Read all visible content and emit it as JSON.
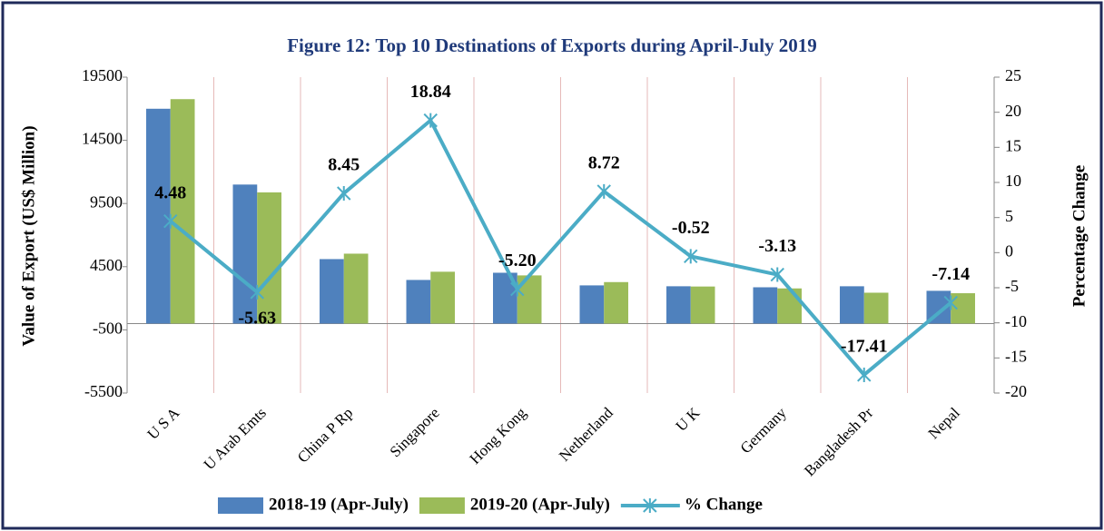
{
  "chart_data": {
    "type": "bar",
    "title": "Figure 12: Top 10 Destinations of Exports during April-July 2019",
    "y_label": "Value of Export (US$ Million)",
    "y2_label": "Percentage Change",
    "categories": [
      "U S A",
      "U Arab Emts",
      "China P Rp",
      "Singapore",
      "Hong Kong",
      "Netherland",
      "U K",
      "Germany",
      "Bangladesh Pr",
      "Nepal"
    ],
    "series": [
      {
        "name": "2018-19 (Apr-July)",
        "type": "bar",
        "color": "#4f81bd",
        "values": [
          17000,
          11000,
          5100,
          3450,
          4020,
          3020,
          2950,
          2870,
          2950,
          2590
        ]
      },
      {
        "name": "2019-20 (Apr-July)",
        "type": "bar",
        "color": "#9bbb59",
        "values": [
          17760,
          10380,
          5530,
          4100,
          3810,
          3280,
          2930,
          2780,
          2440,
          2400
        ]
      },
      {
        "name": "% Change",
        "type": "line",
        "axis": "y2",
        "color": "#4bacc6",
        "values": [
          4.48,
          -5.63,
          8.45,
          18.84,
          -5.2,
          8.72,
          -0.52,
          -3.13,
          -17.41,
          -7.14
        ],
        "value_labels": [
          "4.48",
          "-5.63",
          "8.45",
          "18.84",
          "-5.20",
          "8.72",
          "-0.52",
          "-3.13",
          "-17.41",
          "-7.14"
        ]
      }
    ],
    "ylim": [
      -5500,
      19500
    ],
    "yticks": [
      -5500,
      -500,
      4500,
      9500,
      14500,
      19500
    ],
    "y2lim": [
      -20,
      25
    ],
    "y2ticks": [
      -20,
      -15,
      -10,
      -5,
      0,
      5,
      10,
      15,
      20,
      25
    ],
    "grid": true
  }
}
